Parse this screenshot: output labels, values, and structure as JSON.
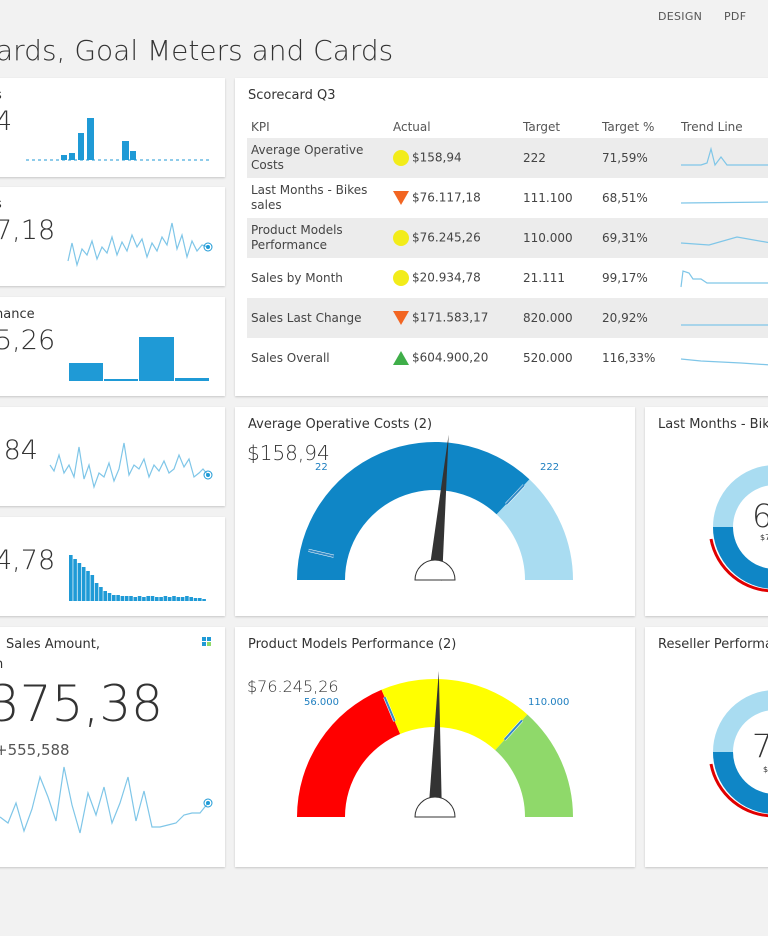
{
  "toolbar": {
    "design": "DESIGN",
    "pdf": "PDF"
  },
  "title": "ards, Goal Meters and Cards",
  "left_cards": [
    {
      "label": "s",
      "value": "4"
    },
    {
      "label": "s",
      "value": "7,18"
    },
    {
      "label": "nance",
      "value": "5,26"
    },
    {
      "label": "",
      "value": ",84"
    },
    {
      "label": "",
      "value": "4,78"
    }
  ],
  "sales_card": {
    "label_line1": "Sales Amount,",
    "label_line2": "n",
    "value": "375,38",
    "sub": "+555,588",
    "grid_icon": "grid-icon"
  },
  "scorecard": {
    "title": "Scorecard Q3",
    "headers": [
      "KPI",
      "Actual",
      "Target",
      "Target %",
      "Trend Line"
    ],
    "rows": [
      {
        "kpi": "Average Operative Costs",
        "status": "yellow-circle",
        "actual": "$158,94",
        "target": "222",
        "pct": "71,59%"
      },
      {
        "kpi": "Last Months - Bikes sales",
        "status": "red-down-triangle",
        "actual": "$76.117,18",
        "target": "111.100",
        "pct": "68,51%"
      },
      {
        "kpi": "Product Models Performance",
        "status": "yellow-circle",
        "actual": "$76.245,26",
        "target": "110.000",
        "pct": "69,31%"
      },
      {
        "kpi": "Sales by Month",
        "status": "yellow-circle",
        "actual": "$20.934,78",
        "target": "21.111",
        "pct": "99,17%"
      },
      {
        "kpi": "Sales Last Change",
        "status": "red-down-triangle",
        "actual": "$171.583,17",
        "target": "820.000",
        "pct": "20,92%"
      },
      {
        "kpi": "Sales Overall",
        "status": "green-up-triangle",
        "actual": "$604.900,20",
        "target": "520.000",
        "pct": "116,33%"
      }
    ]
  },
  "gauge1": {
    "title": "Average Operative Costs (2)",
    "value_label": "$158,94",
    "min_label": "22",
    "max_label": "222",
    "value": 158.94,
    "range": [
      0,
      300
    ],
    "marks": [
      22,
      222
    ]
  },
  "gauge2": {
    "title": "Product Models Performance (2)",
    "value_label": "$76.245,26",
    "min_label": "56.000",
    "max_label": "110.000",
    "value": 76245.26,
    "range": [
      0,
      150000
    ],
    "marks": [
      56000,
      110000
    ]
  },
  "donut1": {
    "title": "Last Months - Bik",
    "value_label": "6",
    "sub_label": "$7"
  },
  "donut2": {
    "title": "Reseller Performa",
    "value_label": "7",
    "sub_label": "$"
  },
  "colors": {
    "blue": "#1f9ad6",
    "dark_blue": "#0f86c6",
    "light_blue": "#a9dcf1",
    "yellow": "#ffff00",
    "red": "#ff0000",
    "green": "#8fd96a",
    "status_yellow": "#f2ec1a",
    "status_red": "#f26522",
    "status_green": "#3fae49"
  }
}
